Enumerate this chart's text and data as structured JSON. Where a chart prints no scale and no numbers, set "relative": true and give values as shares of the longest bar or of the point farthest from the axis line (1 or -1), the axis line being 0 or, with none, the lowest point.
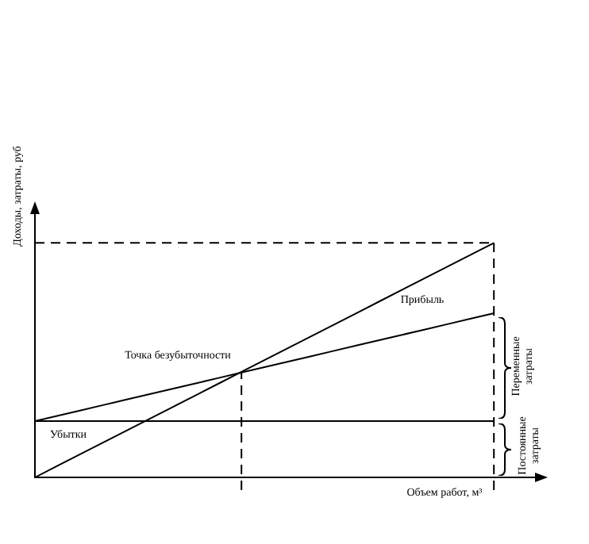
{
  "chart_data": {
    "type": "line",
    "relative": true,
    "ylabel": "Доходы, затраты, руб",
    "xlabel": "Объем работ, м³",
    "categories": [
      null,
      null,
      null,
      null,
      null,
      null,
      null,
      null,
      null,
      null,
      null,
      null,
      null,
      null,
      null,
      null,
      null,
      null,
      null,
      null,
      null,
      null,
      null
    ],
    "legend": false,
    "marker": "none",
    "series": [
      {
        "color": "#000000",
        "values": [
          0,
          0.05,
          0.1,
          0.15,
          0.2,
          0.25,
          0.3,
          0.35,
          0.4,
          0.45,
          0.5,
          0.55,
          0.6,
          0.65,
          0.7,
          0.75,
          0.8,
          0.85,
          0.9,
          0.95,
          1,
          null,
          null
        ]
      },
      {
        "color": "#000000",
        "values": [
          0.24,
          0.263,
          0.286,
          0.309,
          0.332,
          0.355,
          0.378,
          0.401,
          0.424,
          0.447,
          0.47,
          0.493,
          0.516,
          0.539,
          0.562,
          0.585,
          0.608,
          0.631,
          0.654,
          0.677,
          0.7,
          null,
          null
        ]
      },
      {
        "color": "#000000",
        "values": [
          0.24,
          0.24,
          0.24,
          0.24,
          0.24,
          0.24,
          0.24,
          0.24,
          0.24,
          0.24,
          0.24,
          0.24,
          0.24,
          0.24,
          0.24,
          0.24,
          0.24,
          0.24,
          0.24,
          0.24,
          0.24,
          null,
          null
        ]
      }
    ],
    "annotations": [
      "Точка безубыточности",
      "Прибыль",
      "Убытки",
      "Переменные затраты",
      "Постоянные затраты"
    ]
  }
}
